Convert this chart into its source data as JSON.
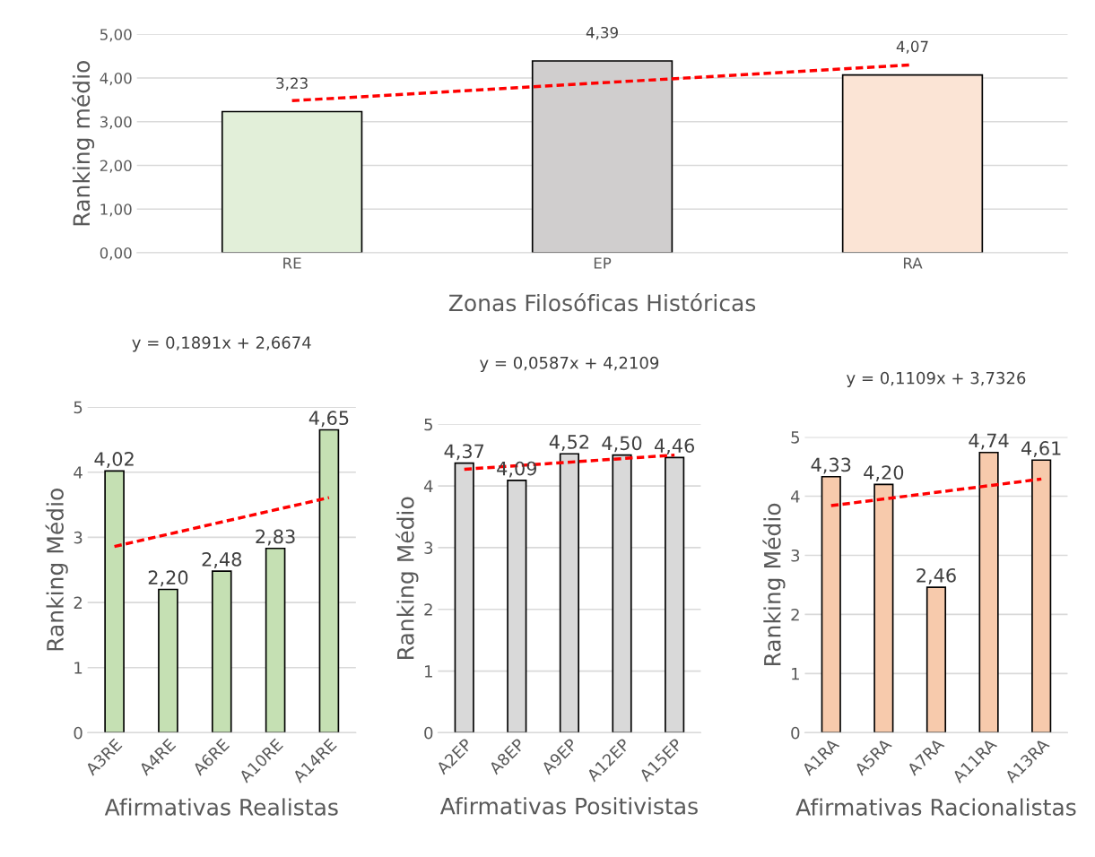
{
  "chart_data": [
    {
      "type": "bar",
      "categories": [
        "RE",
        "EP",
        "RA"
      ],
      "xlabel": "Zonas Filosóficas Históricas",
      "ylabel": "Ranking médio",
      "ylim": [
        0,
        5
      ],
      "yticks": [
        {
          "value": 0,
          "label": "0,00"
        },
        {
          "value": 1,
          "label": "1,00"
        },
        {
          "value": 2,
          "label": "2,00"
        },
        {
          "value": 3,
          "label": "3,00"
        },
        {
          "value": 4,
          "label": "4,00"
        },
        {
          "value": 5,
          "label": "5,00"
        }
      ],
      "grid": "y",
      "series": [
        {
          "values": [
            3.23,
            4.39,
            4.07
          ],
          "colors": [
            "#e2efd9",
            "#d0cece",
            "#fbe4d5"
          ],
          "value_labels": [
            "3,23",
            "4,39",
            "4,07"
          ]
        },
        {
          "type": "line",
          "x": [
            "RE",
            "RA"
          ],
          "values": [
            3.48,
            4.3
          ],
          "color": "#ff0000",
          "line_style": "dashed"
        }
      ]
    },
    {
      "type": "bar",
      "categories": [
        "A3RE",
        "A4RE",
        "A6RE",
        "A10RE",
        "A14RE"
      ],
      "xlabel": "Afirmativas Realistas",
      "ylabel": "Ranking Médio",
      "ylim": [
        0,
        5
      ],
      "yticks": [
        0,
        1,
        2,
        3,
        4,
        5
      ],
      "grid": "y",
      "annotations": [
        "y = 0,1891x + 2,6674"
      ],
      "series": [
        {
          "values": [
            4.02,
            2.2,
            2.48,
            2.83,
            4.65
          ],
          "color": "#c5e0b3",
          "value_labels": [
            "4,02",
            "2,20",
            "2,48",
            "2,83",
            "4,65"
          ]
        },
        {
          "type": "line",
          "x": [
            "A3RE",
            "A14RE"
          ],
          "values": [
            2.86,
            3.61
          ],
          "color": "#ff0000",
          "line_style": "dashed"
        }
      ]
    },
    {
      "type": "bar",
      "categories": [
        "A2EP",
        "A8EP",
        "A9EP",
        "A12EP",
        "A15EP"
      ],
      "xlabel": "Afirmativas Positivistas",
      "ylabel": "Ranking Médio",
      "ylim": [
        0,
        5
      ],
      "yticks": [
        0,
        1,
        2,
        3,
        4,
        5
      ],
      "grid": "y",
      "annotations": [
        "y = 0,0587x + 4,2109"
      ],
      "series": [
        {
          "values": [
            4.37,
            4.09,
            4.52,
            4.5,
            4.46
          ],
          "color": "#d9d9d9",
          "value_labels": [
            "4,37",
            "4,09",
            "4,52",
            "4,50",
            "4,46"
          ]
        },
        {
          "type": "line",
          "x": [
            "A2EP",
            "A15EP"
          ],
          "values": [
            4.27,
            4.5
          ],
          "color": "#ff0000",
          "line_style": "dashed"
        }
      ]
    },
    {
      "type": "bar",
      "categories": [
        "A1RA",
        "A5RA",
        "A7RA",
        "A11RA",
        "A13RA"
      ],
      "xlabel": "Afirmativas Racionalistas",
      "ylabel": "Ranking Médio",
      "ylim": [
        0,
        5
      ],
      "yticks": [
        0,
        1,
        2,
        3,
        4,
        5
      ],
      "grid": "y",
      "annotations": [
        "y = 0,1109x + 3,7326"
      ],
      "series": [
        {
          "values": [
            4.33,
            4.2,
            2.46,
            4.74,
            4.61
          ],
          "color": "#f7caac",
          "value_labels": [
            "4,33",
            "4,20",
            "2,46",
            "4,74",
            "4,61"
          ]
        },
        {
          "type": "line",
          "x": [
            "A1RA",
            "A13RA"
          ],
          "values": [
            3.84,
            4.29
          ],
          "color": "#ff0000",
          "line_style": "dashed"
        }
      ]
    }
  ]
}
